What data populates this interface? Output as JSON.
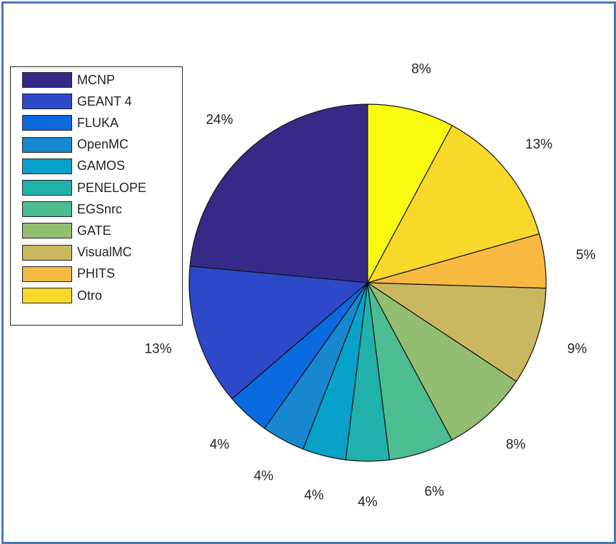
{
  "chart_data": {
    "type": "pie",
    "title": "",
    "legend_position": "left",
    "slices": [
      {
        "name": "MCNP",
        "value": 24,
        "label": "24%",
        "color": "#352a87"
      },
      {
        "name": "GEANT 4",
        "value": 13,
        "label": "13%",
        "color": "#2d48c8"
      },
      {
        "name": "FLUKA",
        "value": 4,
        "label": "4%",
        "color": "#0b6ae0"
      },
      {
        "name": "OpenMC",
        "value": 4,
        "label": "4%",
        "color": "#1788d0"
      },
      {
        "name": "GAMOS",
        "value": 4,
        "label": "4%",
        "color": "#07a1ca"
      },
      {
        "name": "PENELOPE",
        "value": 4,
        "label": "4%",
        "color": "#20b2aa"
      },
      {
        "name": "EGSnrc",
        "value": 6,
        "label": "6%",
        "color": "#4bbd91"
      },
      {
        "name": "GATE",
        "value": 8,
        "label": "8%",
        "color": "#93be72"
      },
      {
        "name": "VisualMC",
        "value": 9,
        "label": "9%",
        "color": "#c9b860"
      },
      {
        "name": "PHITS",
        "value": 5,
        "label": "5%",
        "color": "#f8b940"
      },
      {
        "name": "Otro",
        "value": 13,
        "label": "13%",
        "color": "#f8d92a"
      },
      {
        "name": "",
        "value": 8,
        "label": "8%",
        "color": "#f9fb0e"
      }
    ]
  }
}
